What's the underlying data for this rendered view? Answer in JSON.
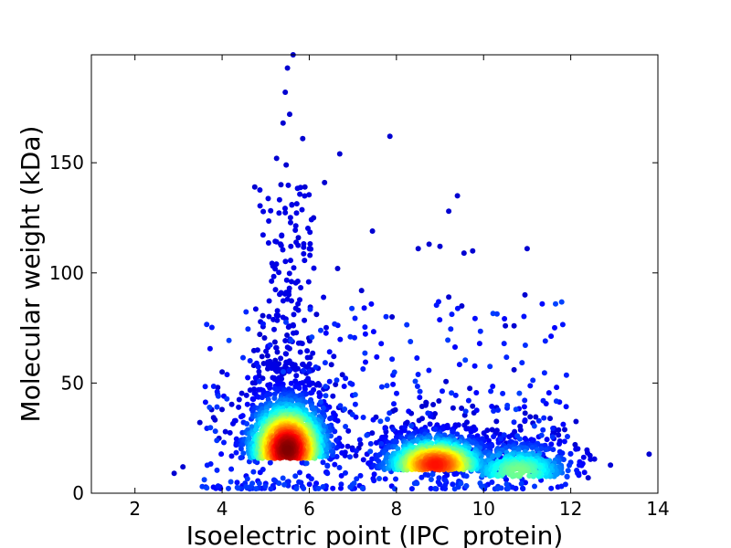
{
  "chart_data": {
    "type": "scatter",
    "xlabel": "Isoelectric point (IPC_protein)",
    "ylabel": "Molecular weight (kDa)",
    "xlim": [
      1,
      14
    ],
    "ylim": [
      0,
      199
    ],
    "xticks": [
      2,
      4,
      6,
      8,
      10,
      12,
      14
    ],
    "yticks": [
      0,
      50,
      100,
      150
    ],
    "grid": false,
    "legend": "none",
    "color_encoding": "point density (jet colormap: blue = low, red = high)",
    "colormap": [
      "#00007f",
      "#0000ff",
      "#00bfff",
      "#40ffbf",
      "#bfff40",
      "#ffbf00",
      "#ff3000",
      "#7f0000"
    ],
    "clusters": [
      {
        "center": [
          5.5,
          20
        ],
        "spread": [
          0.5,
          12
        ],
        "density_peak": 1.0
      },
      {
        "center": [
          8.9,
          13
        ],
        "spread": [
          0.65,
          7
        ],
        "density_peak": 0.85
      },
      {
        "center": [
          10.8,
          10
        ],
        "spread": [
          0.7,
          7
        ],
        "density_peak": 0.45
      }
    ],
    "outliers": [
      [
        5.63,
        199
      ],
      [
        5.5,
        193
      ],
      [
        5.45,
        182
      ],
      [
        5.55,
        172
      ],
      [
        5.4,
        168
      ],
      [
        5.85,
        161
      ],
      [
        7.85,
        162
      ],
      [
        6.7,
        154
      ],
      [
        5.25,
        152
      ],
      [
        5.47,
        149
      ],
      [
        4.75,
        139
      ],
      [
        5.35,
        140
      ],
      [
        5.9,
        139
      ],
      [
        6.35,
        141
      ],
      [
        5.6,
        131
      ],
      [
        6.1,
        125
      ],
      [
        9.4,
        135
      ],
      [
        9.2,
        128
      ],
      [
        7.45,
        119
      ],
      [
        5.75,
        116
      ],
      [
        11.0,
        111
      ],
      [
        8.75,
        113
      ],
      [
        9.0,
        112
      ],
      [
        8.5,
        111
      ],
      [
        9.75,
        110
      ],
      [
        9.55,
        109
      ],
      [
        6.65,
        102
      ],
      [
        10.95,
        90
      ],
      [
        9.2,
        89
      ],
      [
        7.2,
        92
      ],
      [
        9.5,
        85
      ],
      [
        10.7,
        76
      ],
      [
        10.5,
        76
      ],
      [
        7.9,
        80
      ],
      [
        10.7,
        56
      ],
      [
        3.1,
        12
      ],
      [
        2.9,
        9
      ],
      [
        12.4,
        7
      ],
      [
        12.1,
        22
      ],
      [
        11.6,
        28
      ],
      [
        4.0,
        55
      ],
      [
        3.9,
        48
      ]
    ]
  }
}
